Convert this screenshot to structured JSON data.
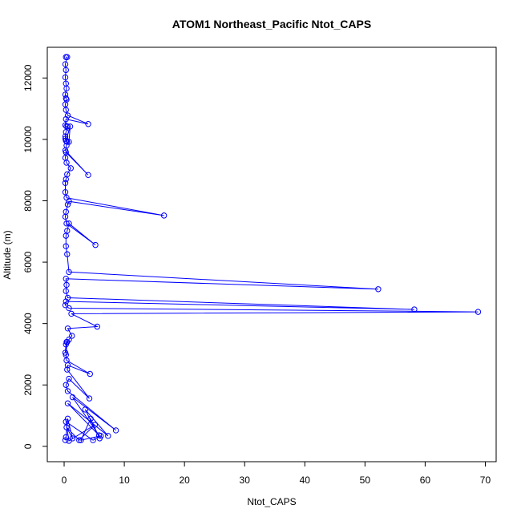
{
  "chart_data": {
    "type": "line",
    "title": "ATOM1 Northeast_Pacific Ntot_CAPS",
    "xlabel": "Ntot_CAPS",
    "ylabel": "Altitude (m)",
    "xlim": [
      -2.8,
      71.8
    ],
    "ylim": [
      -500,
      13000
    ],
    "x_ticks": [
      0,
      10,
      20,
      30,
      40,
      50,
      60,
      70
    ],
    "y_ticks": [
      0,
      2000,
      4000,
      6000,
      8000,
      10000,
      12000
    ],
    "x_tick_labels": [
      "0",
      "10",
      "20",
      "30",
      "40",
      "50",
      "60",
      "70"
    ],
    "y_tick_labels": [
      "0",
      "2000",
      "4000",
      "6000",
      "8000",
      "10000",
      "12000"
    ],
    "grid": false,
    "legend": "none",
    "series": [
      {
        "color": "#0000ff",
        "marker": "open-circle",
        "x": [
          0.3,
          0.5,
          0.2,
          0.3,
          0.2,
          0.3,
          0.4,
          0.2,
          0.3,
          0.4,
          0.2,
          0.3,
          0.6,
          4.0,
          0.3,
          0.2,
          0.4,
          0.6,
          0.3,
          0.2,
          0.2,
          0.3,
          0.5,
          0.3,
          1.0,
          0.8,
          0.4,
          0.2,
          4.0,
          0.3,
          0.2,
          0.4,
          1.1,
          0.5,
          0.3,
          0.2,
          0.2,
          0.4,
          16.6,
          0.8,
          0.6,
          0.3,
          0.2,
          0.4,
          5.2,
          0.8,
          0.5,
          0.3,
          0.3,
          0.5,
          0.8,
          52.2,
          0.3,
          0.4,
          0.3,
          0.6,
          58.2,
          0.3,
          0.2,
          0.8,
          68.8,
          1.2,
          5.5,
          0.6,
          1.3,
          0.8,
          0.4,
          0.3,
          0.2,
          0.5,
          0.3,
          0.4,
          4.3,
          0.6,
          0.5,
          4.2,
          0.8,
          0.3,
          0.6,
          8.6,
          1.4,
          5.8,
          0.6,
          7.3,
          3.5,
          5.9,
          4.4,
          2.8,
          6.1,
          4.8,
          0.3,
          0.8,
          5.1,
          2.5,
          0.4,
          1.4,
          0.6,
          0.3,
          0.2
        ],
        "y": [
          12680,
          12680,
          12450,
          12260,
          12020,
          11820,
          11660,
          11460,
          11340,
          11300,
          11140,
          10960,
          10780,
          10500,
          10660,
          10460,
          10420,
          10420,
          10240,
          10100,
          10020,
          9960,
          9920,
          9960,
          10420,
          9920,
          9800,
          9640,
          8840,
          9580,
          9400,
          9240,
          9060,
          8860,
          8700,
          8580,
          8280,
          8100,
          7520,
          7980,
          7880,
          7640,
          7480,
          7260,
          6560,
          7260,
          7020,
          6860,
          6520,
          6260,
          5680,
          5120,
          5460,
          5260,
          5060,
          4840,
          4460,
          4720,
          4600,
          4500,
          4380,
          4320,
          3900,
          3840,
          3600,
          3480,
          3400,
          3320,
          3050,
          3400,
          2980,
          2800,
          2360,
          2640,
          2500,
          1560,
          2200,
          2000,
          1800,
          520,
          1600,
          360,
          1400,
          340,
          1200,
          260,
          900,
          200,
          340,
          200,
          800,
          180,
          700,
          200,
          620,
          260,
          900,
          300,
          200
        ]
      }
    ]
  }
}
